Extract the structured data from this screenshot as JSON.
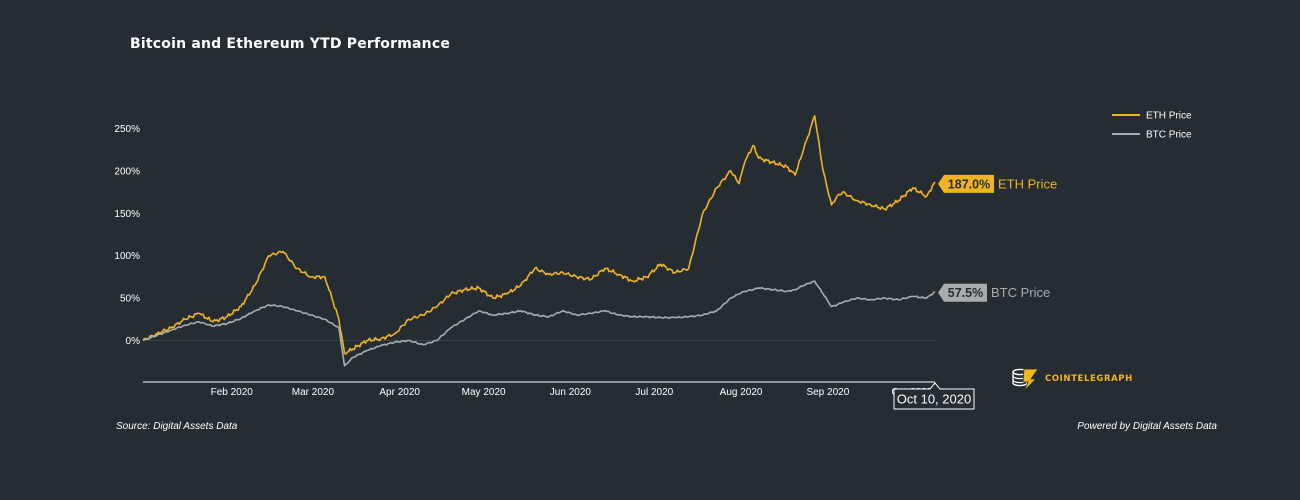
{
  "title": "Bitcoin and Ethereum YTD Performance",
  "source": "Source: Digital Assets Data",
  "powered_by": "Powered by Digital Assets Data",
  "logo": {
    "text": "COINTELEGRAPH",
    "icon": "cointelegraph-logo-icon"
  },
  "colors": {
    "eth": "#f0b323",
    "btc": "#a8abad",
    "background": "#252d33",
    "axis": "#ffffff",
    "zero_line": "#3a434a"
  },
  "chart_data": {
    "type": "line",
    "title": "Bitcoin and Ethereum YTD Performance",
    "xlabel": "",
    "ylabel": "",
    "x_range": [
      "2020-01-01",
      "2020-10-10"
    ],
    "ylim": [
      -50,
      250
    ],
    "y_ticks": [
      {
        "value": 0,
        "label": "0%"
      },
      {
        "value": 50,
        "label": "50%"
      },
      {
        "value": 100,
        "label": "100%"
      },
      {
        "value": 150,
        "label": "150%"
      },
      {
        "value": 200,
        "label": "200%"
      },
      {
        "value": 250,
        "label": "250%"
      }
    ],
    "x_ticks": [
      {
        "day": 31,
        "label": "Feb 2020"
      },
      {
        "day": 60,
        "label": "Mar 2020"
      },
      {
        "day": 91,
        "label": "Apr 2020"
      },
      {
        "day": 121,
        "label": "May 2020"
      },
      {
        "day": 152,
        "label": "Jun 2020"
      },
      {
        "day": 182,
        "label": "Jul 2020"
      },
      {
        "day": 213,
        "label": "Aug 2020"
      },
      {
        "day": 244,
        "label": "Sep 2020"
      },
      {
        "day": 274,
        "label": "Oct 2020"
      }
    ],
    "legend": {
      "position": "top-right",
      "entries": [
        {
          "name": "ETH Price",
          "color": "#f0b323"
        },
        {
          "name": "BTC Price",
          "color": "#a8abad"
        }
      ]
    },
    "crosshair_label": "Oct 10, 2020",
    "series": [
      {
        "name": "ETH Price",
        "color": "#f0b323",
        "last_label": "187.0%",
        "x": [
          0,
          5,
          10,
          15,
          20,
          25,
          30,
          35,
          40,
          45,
          50,
          55,
          60,
          65,
          70,
          72,
          75,
          80,
          85,
          90,
          95,
          100,
          105,
          110,
          115,
          120,
          125,
          130,
          135,
          140,
          145,
          150,
          155,
          160,
          165,
          170,
          175,
          180,
          185,
          190,
          195,
          200,
          205,
          210,
          213,
          215,
          218,
          220,
          225,
          230,
          233,
          236,
          240,
          243,
          246,
          248,
          250,
          255,
          260,
          265,
          270,
          275,
          280,
          283
        ],
        "values": [
          0,
          8,
          15,
          25,
          32,
          22,
          28,
          40,
          65,
          100,
          105,
          85,
          75,
          75,
          25,
          -15,
          -10,
          0,
          2,
          8,
          25,
          30,
          40,
          55,
          60,
          62,
          50,
          55,
          65,
          85,
          78,
          80,
          75,
          72,
          85,
          78,
          70,
          75,
          90,
          80,
          85,
          150,
          180,
          200,
          185,
          210,
          230,
          215,
          210,
          205,
          195,
          225,
          265,
          200,
          160,
          170,
          175,
          165,
          160,
          155,
          165,
          180,
          170,
          187
        ]
      },
      {
        "name": "BTC Price",
        "color": "#a8abad",
        "last_label": "57.5%",
        "x": [
          0,
          5,
          10,
          15,
          20,
          25,
          30,
          35,
          40,
          45,
          50,
          55,
          60,
          65,
          70,
          72,
          75,
          80,
          85,
          90,
          95,
          100,
          105,
          110,
          115,
          120,
          125,
          130,
          135,
          140,
          145,
          150,
          155,
          160,
          165,
          170,
          175,
          180,
          185,
          190,
          195,
          200,
          205,
          210,
          213,
          215,
          218,
          220,
          225,
          230,
          233,
          236,
          240,
          243,
          246,
          248,
          250,
          255,
          260,
          265,
          270,
          275,
          280,
          283
        ],
        "values": [
          0,
          6,
          12,
          18,
          22,
          17,
          20,
          26,
          35,
          42,
          40,
          35,
          30,
          25,
          15,
          -30,
          -20,
          -12,
          -6,
          -2,
          0,
          -5,
          0,
          15,
          25,
          35,
          30,
          32,
          35,
          30,
          28,
          35,
          30,
          32,
          35,
          30,
          28,
          28,
          27,
          27,
          28,
          30,
          35,
          50,
          55,
          58,
          60,
          62,
          60,
          58,
          60,
          65,
          70,
          55,
          40,
          42,
          45,
          50,
          48,
          50,
          48,
          52,
          50,
          57.5
        ]
      }
    ]
  }
}
